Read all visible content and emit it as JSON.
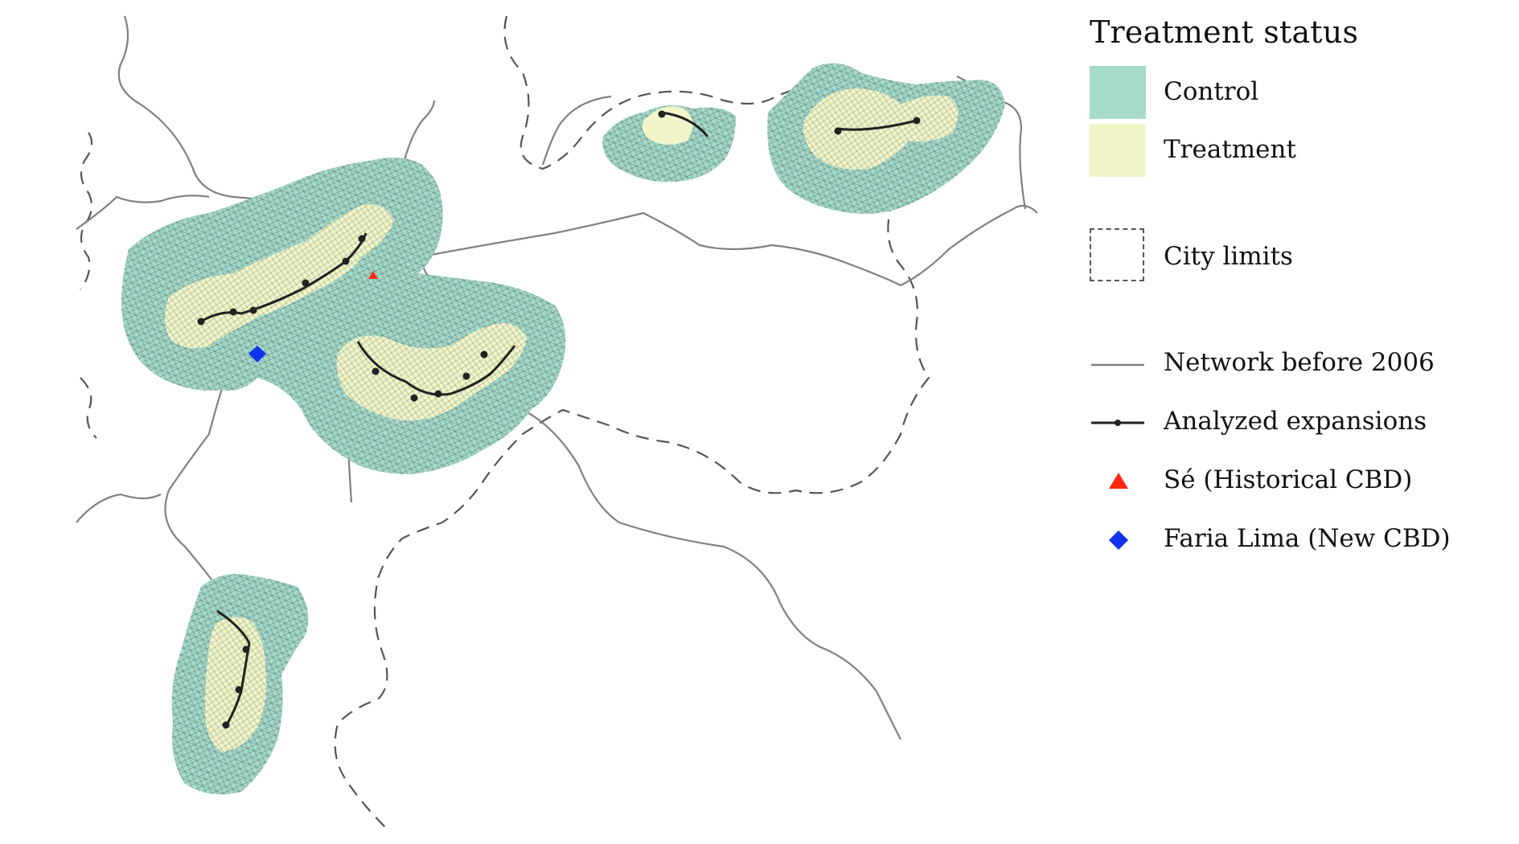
{
  "legend": {
    "title": "Treatment status",
    "control": {
      "label": "Control",
      "color": "#a6dbcc"
    },
    "treatment": {
      "label": "Treatment",
      "color": "#f1f5c8"
    },
    "city_limits": {
      "label": "City limits"
    },
    "network": {
      "label": "Network before 2006",
      "color": "#808080"
    },
    "expansions": {
      "label": "Analyzed expansions",
      "color": "#222222"
    },
    "se": {
      "label": "Sé (Historical CBD)",
      "color": "#ff2a12",
      "icon": "triangle"
    },
    "faria_lima": {
      "label": "Faria Lima (New CBD)",
      "color": "#1133ee",
      "icon": "diamond"
    }
  },
  "colors": {
    "control": "#a6dbcc",
    "treatment": "#f1f5c8",
    "streets": "#2b3b36",
    "network": "#808080",
    "city_limits": "#555555",
    "expansion_line": "#222222"
  }
}
